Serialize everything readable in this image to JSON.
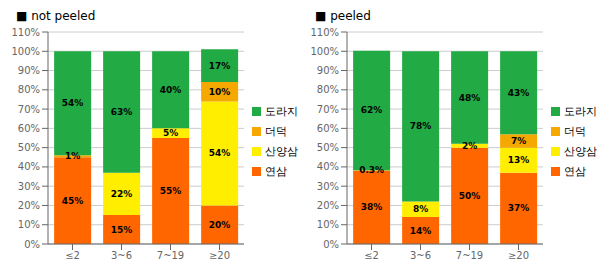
{
  "chart_data": [
    {
      "type": "bar",
      "title": "■ not peeled",
      "categories": [
        "≤2",
        "3~6",
        "7~19",
        "≥20"
      ],
      "series": [
        {
          "name": "연삼",
          "color": "#ff6600",
          "values": [
            45,
            15,
            55,
            20
          ],
          "value_labels": [
            "45%",
            "15%",
            "55%",
            "20%"
          ]
        },
        {
          "name": "산양삼",
          "color": "#ffee00",
          "values": [
            0,
            22,
            5,
            54
          ],
          "value_labels": [
            null,
            "22%",
            "5%",
            "54%"
          ]
        },
        {
          "name": "더덕",
          "color": "#f5a800",
          "values": [
            1,
            0,
            0,
            10
          ],
          "value_labels": [
            "1%",
            null,
            null,
            "10%"
          ]
        },
        {
          "name": "도라지",
          "color": "#22aa44",
          "values": [
            54,
            63,
            40,
            17
          ],
          "value_labels": [
            "54%",
            "63%",
            "40%",
            "17%"
          ]
        }
      ],
      "ylim": [
        0,
        110
      ],
      "yticks": [
        {
          "value": 0,
          "label": "0%"
        },
        {
          "value": 10,
          "label": "10%"
        },
        {
          "value": 20,
          "label": "20%"
        },
        {
          "value": 30,
          "label": "30%"
        },
        {
          "value": 40,
          "label": "40%"
        },
        {
          "value": 50,
          "label": "50%"
        },
        {
          "value": 60,
          "label": "60%"
        },
        {
          "value": 70,
          "label": "70%"
        },
        {
          "value": 80,
          "label": "80%"
        },
        {
          "value": 90,
          "label": "90%"
        },
        {
          "value": 100,
          "label": "100%"
        },
        {
          "value": 110,
          "label": "110%"
        }
      ],
      "grid": true,
      "legend": "right",
      "stacked": true,
      "data_labels": true
    },
    {
      "type": "bar",
      "title": "■ peeled",
      "categories": [
        "≤2",
        "3~6",
        "7~19",
        "≥20"
      ],
      "series": [
        {
          "name": "연삼",
          "color": "#ff6600",
          "values": [
            38,
            14,
            50,
            37
          ],
          "value_labels": [
            "38%",
            "14%",
            "50%",
            "37%"
          ]
        },
        {
          "name": "산양삼",
          "color": "#ffee00",
          "values": [
            0,
            8,
            2,
            13
          ],
          "value_labels": [
            null,
            "8%",
            "2%",
            "13%"
          ]
        },
        {
          "name": "더덕",
          "color": "#f5a800",
          "values": [
            0.3,
            0,
            0,
            7
          ],
          "value_labels": [
            "0.3%",
            null,
            null,
            "7%"
          ]
        },
        {
          "name": "도라지",
          "color": "#22aa44",
          "values": [
            62,
            78,
            48,
            43
          ],
          "value_labels": [
            "62%",
            "78%",
            "48%",
            "43%"
          ]
        }
      ],
      "ylim": [
        0,
        110
      ],
      "yticks": [
        {
          "value": 0,
          "label": "0%"
        },
        {
          "value": 10,
          "label": "10%"
        },
        {
          "value": 20,
          "label": "20%"
        },
        {
          "value": 30,
          "label": "30%"
        },
        {
          "value": 40,
          "label": "40%"
        },
        {
          "value": 50,
          "label": "50%"
        },
        {
          "value": 60,
          "label": "60%"
        },
        {
          "value": 70,
          "label": "70%"
        },
        {
          "value": 80,
          "label": "80%"
        },
        {
          "value": 90,
          "label": "90%"
        },
        {
          "value": 100,
          "label": "100%"
        },
        {
          "value": 110,
          "label": "110%"
        }
      ],
      "grid": true,
      "legend": "right",
      "stacked": true,
      "data_labels": true
    }
  ]
}
